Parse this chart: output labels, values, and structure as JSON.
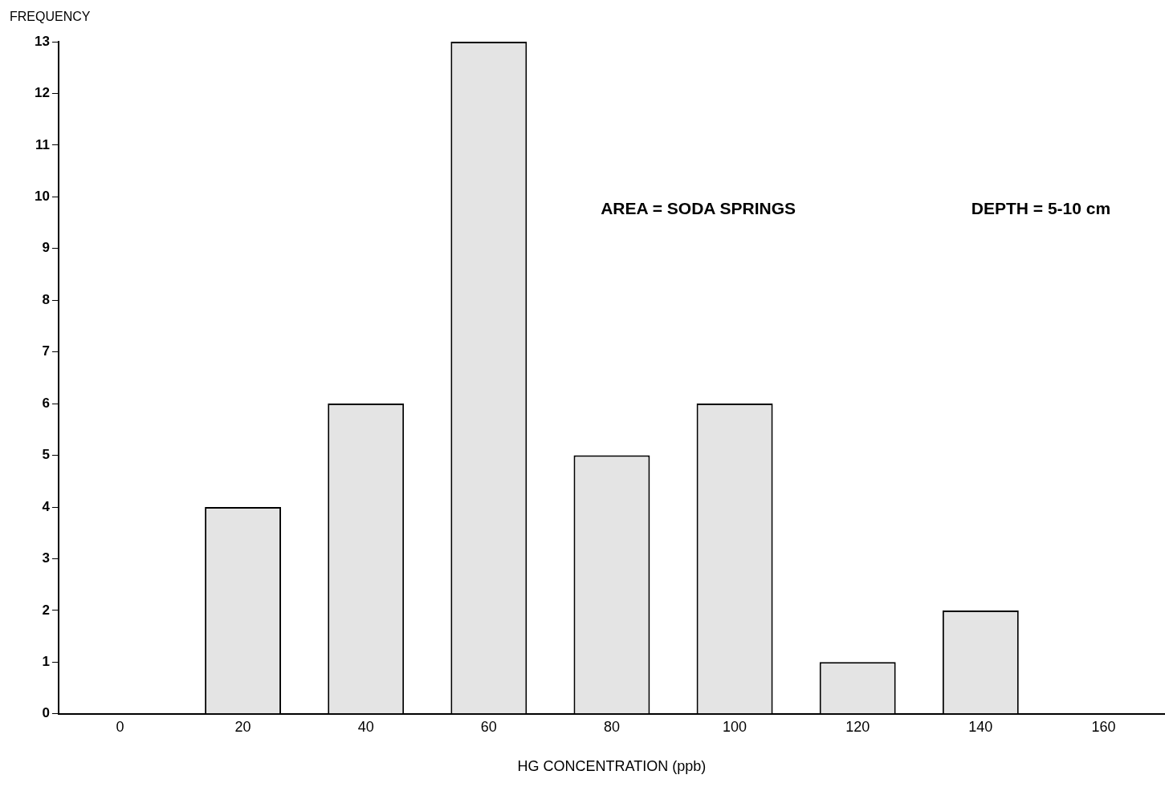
{
  "chart_data": {
    "type": "bar",
    "xlabel": "HG CONCENTRATION (ppb)",
    "ylabel": "FREQUENCY",
    "categories": [
      "0",
      "20",
      "40",
      "60",
      "80",
      "100",
      "120",
      "140",
      "160"
    ],
    "values": [
      0,
      4,
      6,
      13,
      5,
      6,
      1,
      2,
      0
    ],
    "color": "#e4e4e4",
    "ylim": [
      0,
      13
    ],
    "yticks": [
      0,
      1,
      2,
      3,
      4,
      5,
      6,
      7,
      8,
      9,
      10,
      11,
      12,
      13
    ],
    "grid": false,
    "annotations": [
      "AREA = SODA SPRINGS",
      "DEPTH = 5-10 cm"
    ]
  }
}
